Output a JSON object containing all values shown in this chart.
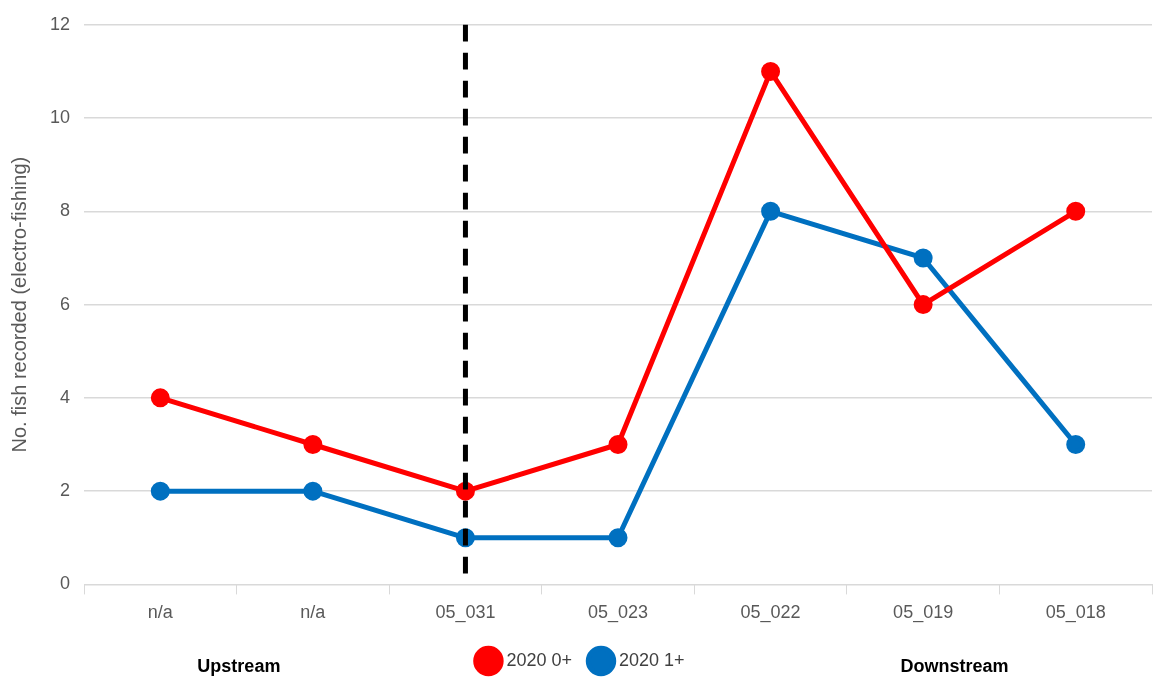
{
  "chart_data": {
    "type": "line",
    "ylabel": "No. fish recorded (electro-fishing)",
    "categories": [
      "n/a",
      "n/a",
      "05_031",
      "05_023",
      "05_022",
      "05_019",
      "05_018"
    ],
    "series": [
      {
        "name": "2020 0+",
        "color": "#ff0000",
        "values": [
          4,
          3,
          2,
          3,
          11,
          6,
          8
        ]
      },
      {
        "name": "2020 1+",
        "color": "#0070c0",
        "values": [
          2,
          2,
          1,
          1,
          8,
          7,
          3
        ]
      }
    ],
    "ylim": [
      0,
      12
    ],
    "yticks": [
      0,
      2,
      4,
      6,
      8,
      10,
      12
    ],
    "grid": "y",
    "legend": "bottom",
    "marker": "circle",
    "line_style": "solid",
    "ref_lines": [
      {
        "axis": "x",
        "value": "05_031",
        "color": "#000000",
        "line_style": "dashed"
      }
    ],
    "annotations": [
      "Upstream",
      "Downstream"
    ]
  }
}
